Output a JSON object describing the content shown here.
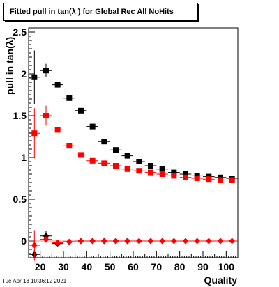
{
  "title": "Fitted pull in tan(λ ) for Global Rec All NoHits",
  "timestamp": "Tue Apr 13 10:36:12 2021",
  "chart_data": {
    "type": "scatter",
    "xlabel": "Quality",
    "ylabel": "pull in tan(λ)",
    "xlim": [
      15,
      105
    ],
    "ylim": [
      -0.2,
      2.55
    ],
    "x_ticks": [
      20,
      30,
      40,
      50,
      60,
      70,
      80,
      90,
      100
    ],
    "y_ticks": [
      0,
      0.5,
      1,
      1.5,
      2,
      2.5
    ],
    "y_tick_labels": [
      "0",
      "0.5",
      "1",
      "1.5",
      "2",
      "2.5"
    ],
    "x_tick_labels": [
      "20",
      "30",
      "40",
      "50",
      "60",
      "70",
      "80",
      "90",
      "100"
    ],
    "grid": false,
    "series": [
      {
        "marker": "square",
        "color": "#000000",
        "x": [
          17.5,
          22.5,
          27.5,
          32.5,
          37.5,
          42.5,
          47.5,
          52.5,
          57.5,
          62.5,
          67.5,
          72.5,
          77.5,
          82.5,
          87.5,
          92.5,
          97.5,
          102.5
        ],
        "y": [
          1.96,
          2.04,
          1.87,
          1.71,
          1.56,
          1.37,
          1.19,
          1.09,
          1.02,
          0.95,
          0.9,
          0.86,
          0.82,
          0.8,
          0.78,
          0.77,
          0.76,
          0.75
        ],
        "yerr": [
          0.32,
          0.08,
          0.03,
          0.02,
          0.02,
          0.02,
          0.02,
          0.02,
          0.02,
          0.02,
          0.02,
          0.02,
          0.02,
          0.02,
          0.02,
          0.02,
          0.02,
          0.02
        ]
      },
      {
        "marker": "square",
        "color": "#ff0000",
        "x": [
          17.5,
          22.5,
          27.5,
          32.5,
          37.5,
          42.5,
          47.5,
          52.5,
          57.5,
          62.5,
          67.5,
          72.5,
          77.5,
          82.5,
          87.5,
          92.5,
          97.5,
          102.5
        ],
        "y": [
          1.29,
          1.5,
          1.33,
          1.14,
          1.03,
          0.96,
          0.93,
          0.9,
          0.86,
          0.84,
          0.82,
          0.8,
          0.78,
          0.76,
          0.75,
          0.74,
          0.73,
          0.73
        ],
        "yerr": [
          0.3,
          0.12,
          0.03,
          0.02,
          0.02,
          0.02,
          0.02,
          0.02,
          0.02,
          0.02,
          0.02,
          0.02,
          0.02,
          0.02,
          0.02,
          0.02,
          0.02,
          0.02
        ]
      },
      {
        "marker": "diamond",
        "color": "#000000",
        "x": [
          17.5,
          22.5,
          27.5,
          32.5,
          37.5,
          42.5,
          47.5,
          52.5,
          57.5
        ],
        "y": [
          -0.16,
          0.06,
          -0.03,
          -0.01,
          0.0,
          0.0,
          0.0,
          0.0,
          0.0
        ],
        "yerr": [
          0.05,
          0.06,
          0.02,
          0.01,
          0.01,
          0.01,
          0.01,
          0.01,
          0.01
        ]
      },
      {
        "marker": "diamond",
        "color": "#ff0000",
        "x": [
          17.5,
          22.5,
          27.5,
          32.5,
          37.5,
          42.5,
          47.5,
          52.5,
          57.5,
          62.5,
          67.5,
          72.5,
          77.5,
          82.5,
          87.5,
          92.5,
          97.5,
          102.5
        ],
        "y": [
          -0.05,
          0.02,
          -0.02,
          -0.01,
          0.0,
          0.0,
          0.0,
          0.0,
          0.0,
          0.0,
          0.0,
          0.0,
          0.0,
          0.0,
          0.0,
          0.0,
          0.0,
          0.0
        ],
        "yerr": [
          0.18,
          0.04,
          0.02,
          0.01,
          0.01,
          0.01,
          0.01,
          0.01,
          0.01,
          0.01,
          0.01,
          0.01,
          0.01,
          0.01,
          0.01,
          0.01,
          0.01,
          0.01
        ]
      }
    ]
  }
}
